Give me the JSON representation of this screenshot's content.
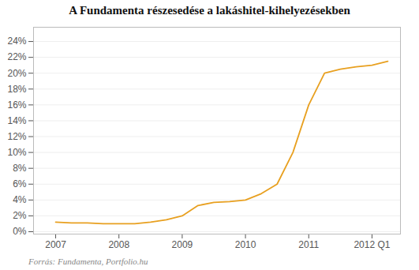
{
  "chart_data": {
    "type": "line",
    "title": "A Fundamenta részesedése a lakáshitel-kihelyezésekben",
    "footnote": "Forrás: Fundamenta, Portfolio.hu",
    "color": "#E8A020",
    "x": [
      2007.0,
      2007.25,
      2007.5,
      2007.75,
      2008.0,
      2008.25,
      2008.5,
      2008.75,
      2009.0,
      2009.25,
      2009.5,
      2009.75,
      2010.0,
      2010.25,
      2010.5,
      2010.75,
      2011.0,
      2011.25,
      2011.5,
      2011.75,
      2012.0,
      2012.25
    ],
    "values": [
      0.012,
      0.011,
      0.011,
      0.01,
      0.01,
      0.01,
      0.012,
      0.015,
      0.02,
      0.033,
      0.037,
      0.038,
      0.04,
      0.048,
      0.06,
      0.1,
      0.16,
      0.2,
      0.205,
      0.208,
      0.21,
      0.215
    ],
    "xlim": [
      2006.65,
      2012.45
    ],
    "xticks": [
      2007,
      2008,
      2009,
      2010,
      2011,
      {
        "value": 2012,
        "label": "2012 Q1"
      }
    ],
    "ylim": [
      -0.003,
      0.258
    ],
    "yticks": [
      {
        "value": 0.0,
        "label": "0%"
      },
      {
        "value": 0.02,
        "label": "2%"
      },
      {
        "value": 0.04,
        "label": "4%"
      },
      {
        "value": 0.06,
        "label": "6%"
      },
      {
        "value": 0.08,
        "label": "8%"
      },
      {
        "value": 0.1,
        "label": "10%"
      },
      {
        "value": 0.12,
        "label": "12%"
      },
      {
        "value": 0.14,
        "label": "14%"
      },
      {
        "value": 0.16,
        "label": "16%"
      },
      {
        "value": 0.18,
        "label": "18%"
      },
      {
        "value": 0.2,
        "label": "20%"
      },
      {
        "value": 0.22,
        "label": "22%"
      },
      {
        "value": 0.24,
        "label": "24%"
      }
    ],
    "grid": true
  }
}
